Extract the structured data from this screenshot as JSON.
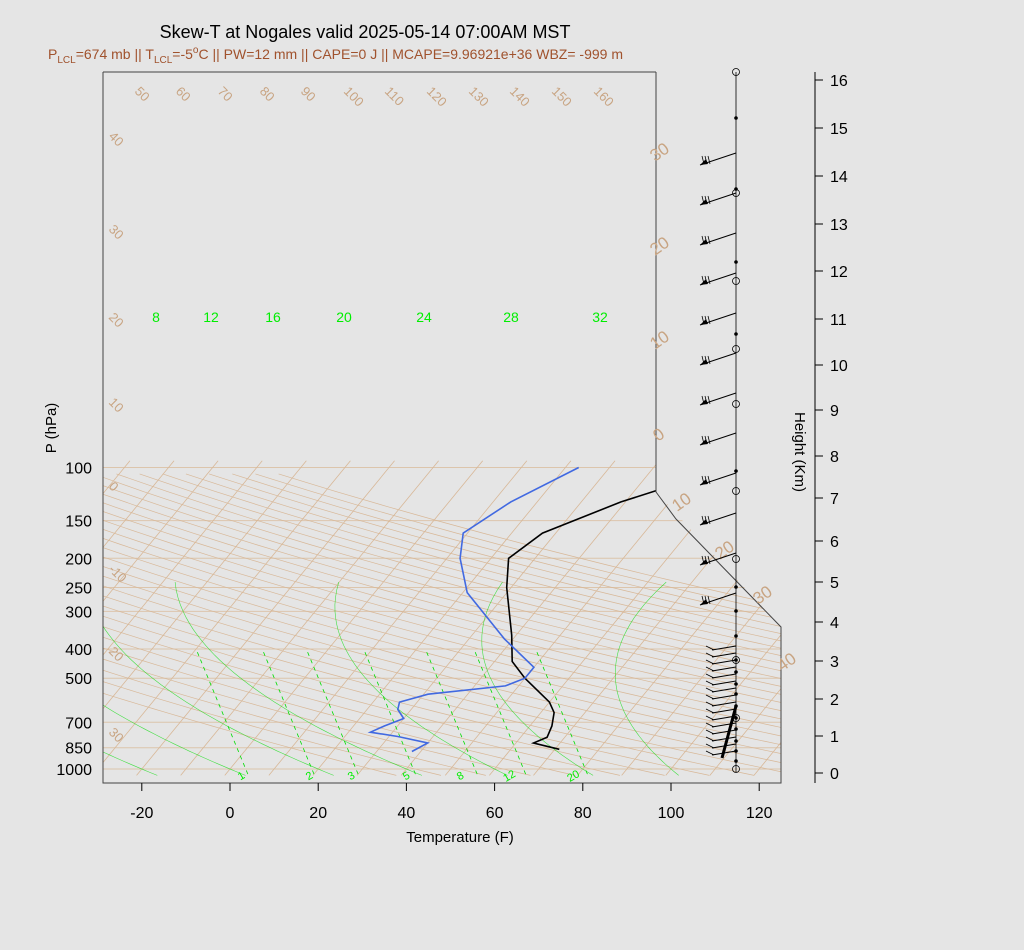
{
  "title": "Skew-T at Nogales valid 2025-05-14 07:00AM MST",
  "subtitle": {
    "p": "P",
    "p_sub": "LCL",
    "p_val": "=674 mb || ",
    "t": "T",
    "t_sub": "LCL",
    "t_val": "=-5",
    "t_deg": "o",
    "t_rest": "C || PW=12 mm || CAPE=0 J || MCAPE=9.96921e+36 WBZ= -999 m"
  },
  "colors": {
    "background": "#e5e5e5",
    "temperature": "#000000",
    "dewpoint": "#4169e1",
    "isotherm": "#d8b898",
    "mixing_ratio": "#00dd00",
    "subtitle": "#a0522d"
  },
  "chart_data": {
    "type": "skew-t",
    "title": "Skew-T at Nogales valid 2025-05-14 07:00AM MST",
    "xlabel": "Temperature (F)",
    "ylabel": "P (hPa)",
    "y2label": "Height (Km)",
    "xlim": [
      -28,
      125
    ],
    "ylim": [
      1030,
      100
    ],
    "x_ticks": [
      "-20",
      "0",
      "20",
      "40",
      "60",
      "80",
      "100",
      "120"
    ],
    "p_ticks": [
      "100",
      "150",
      "200",
      "250",
      "300",
      "400",
      "500",
      "700",
      "850",
      "1000"
    ],
    "height_ticks": [
      "0",
      "1",
      "2",
      "3",
      "4",
      "5",
      "6",
      "7",
      "8",
      "9",
      "10",
      "11",
      "12",
      "13",
      "14",
      "15",
      "16"
    ],
    "isotherm_labels_top": [
      "50",
      "60",
      "70",
      "80",
      "90",
      "100",
      "110",
      "120",
      "130",
      "140",
      "150",
      "160"
    ],
    "isotherm_labels_left": [
      "40",
      "30",
      "20",
      "10",
      "0",
      "-10",
      "20",
      "30"
    ],
    "isotherm_labels_right": [
      "30",
      "20",
      "10",
      "0",
      "10",
      "20",
      "30",
      "40"
    ],
    "mixing_ratio_labels_top": [
      "8",
      "12",
      "16",
      "20",
      "24",
      "28",
      "32"
    ],
    "mixing_ratio_labels_bottom": [
      "1",
      "2",
      "3",
      "5",
      "8",
      "12",
      "20"
    ],
    "series": [
      {
        "name": "Temperature",
        "points": [
          {
            "p": 860,
            "t": 71
          },
          {
            "p": 820,
            "t": 64
          },
          {
            "p": 785,
            "t": 66
          },
          {
            "p": 720,
            "t": 65
          },
          {
            "p": 650,
            "t": 63
          },
          {
            "p": 600,
            "t": 60
          },
          {
            "p": 500,
            "t": 50
          },
          {
            "p": 440,
            "t": 44
          },
          {
            "p": 360,
            "t": 39
          },
          {
            "p": 250,
            "t": 29
          },
          {
            "p": 200,
            "t": 24
          },
          {
            "p": 165,
            "t": 27
          },
          {
            "p": 130,
            "t": 39
          },
          {
            "p": 100,
            "t": 57
          }
        ]
      },
      {
        "name": "Dewpoint",
        "points": [
          {
            "p": 875,
            "t": 38
          },
          {
            "p": 820,
            "t": 40
          },
          {
            "p": 780,
            "t": 32
          },
          {
            "p": 755,
            "t": 25
          },
          {
            "p": 720,
            "t": 27
          },
          {
            "p": 680,
            "t": 30
          },
          {
            "p": 635,
            "t": 27
          },
          {
            "p": 600,
            "t": 26
          },
          {
            "p": 565,
            "t": 31
          },
          {
            "p": 530,
            "t": 47
          },
          {
            "p": 500,
            "t": 50
          },
          {
            "p": 460,
            "t": 50
          },
          {
            "p": 370,
            "t": 38
          },
          {
            "p": 260,
            "t": 21
          },
          {
            "p": 200,
            "t": 13
          },
          {
            "p": 165,
            "t": 9
          },
          {
            "p": 130,
            "t": 14
          },
          {
            "p": 100,
            "t": 23
          }
        ]
      }
    ]
  }
}
